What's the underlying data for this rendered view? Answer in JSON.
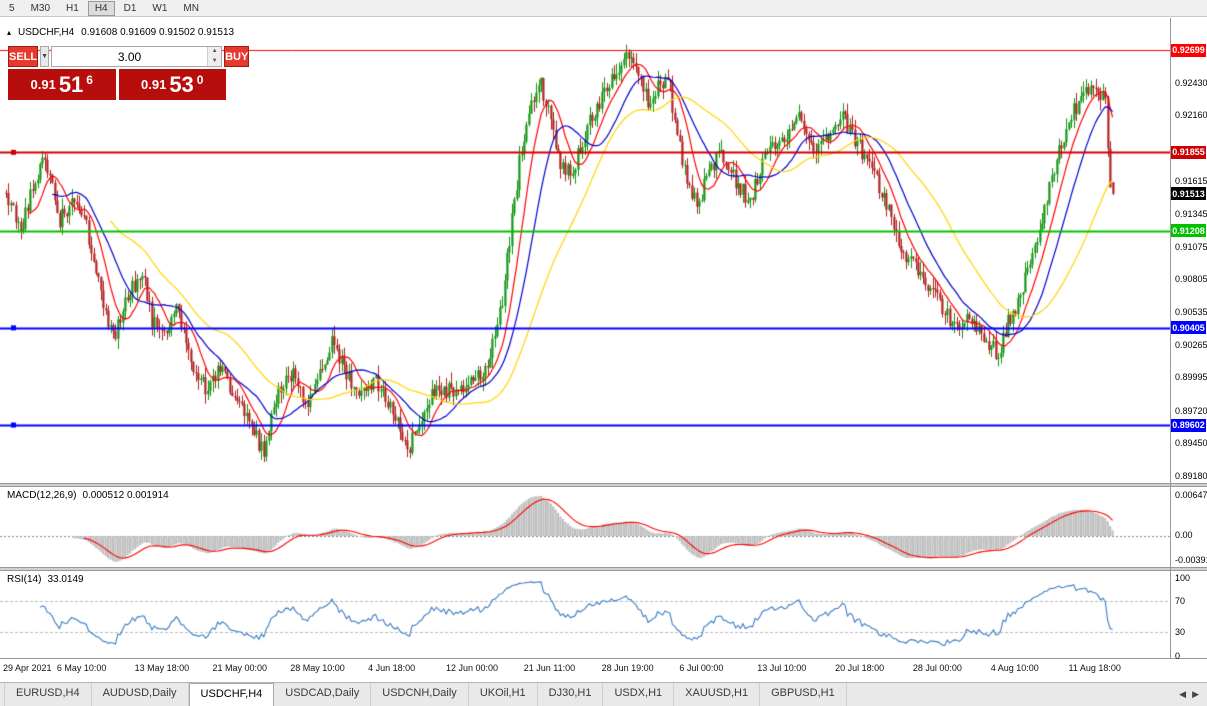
{
  "toolbar": {
    "timeframes": [
      {
        "label": "5",
        "active": false
      },
      {
        "label": "M30",
        "active": false
      },
      {
        "label": "H1",
        "active": false
      },
      {
        "label": "H4",
        "active": true
      },
      {
        "label": "D1",
        "active": false
      },
      {
        "label": "W1",
        "active": false
      },
      {
        "label": "MN",
        "active": false
      }
    ]
  },
  "chart_header": {
    "collapse_icon": "▴",
    "symbol": "USDCHF,H4",
    "ohlc": "0.91608 0.91609 0.91502 0.91513"
  },
  "trade_panel": {
    "sell_label": "SELL",
    "buy_label": "BUY",
    "volume": "3.00",
    "sell_price": {
      "prefix": "0.91",
      "big": "51",
      "sup": "6"
    },
    "buy_price": {
      "prefix": "0.91",
      "big": "53",
      "sup": "0"
    },
    "button_color": "#e8392e",
    "price_box_color": "#b80d0d"
  },
  "chart_data": {
    "type": "candlestick",
    "symbol": "USDCHF",
    "period": "H4",
    "title": "USDCHF,H4",
    "ohlc_current": {
      "open": 0.91608,
      "high": 0.91609,
      "low": 0.91502,
      "close": 0.91513
    },
    "axis": {
      "price_top": 0.92965,
      "price_bottom": 0.89115,
      "labels": [
        "0.92430",
        "0.92160",
        "0.91615",
        "0.91345",
        "0.91075",
        "0.90805",
        "0.90535",
        "0.90265",
        "0.89995",
        "0.89720",
        "0.89450",
        "0.89180"
      ]
    },
    "time_labels": [
      "29 Apr 2021",
      "6 May 10:00",
      "13 May 18:00",
      "21 May 00:00",
      "28 May 10:00",
      "4 Jun 18:00",
      "12 Jun 00:00",
      "21 Jun 11:00",
      "28 Jun 19:00",
      "6 Jul 00:00",
      "13 Jul 10:00",
      "20 Jul 18:00",
      "28 Jul 00:00",
      "4 Aug 10:00",
      "11 Aug 18:00"
    ],
    "candle_count": 456,
    "price_path": [
      [
        0,
        0.9152
      ],
      [
        6,
        0.9118
      ],
      [
        12,
        0.9165
      ],
      [
        16,
        0.9182
      ],
      [
        22,
        0.913
      ],
      [
        28,
        0.9148
      ],
      [
        32,
        0.9135
      ],
      [
        38,
        0.9078
      ],
      [
        44,
        0.9032
      ],
      [
        50,
        0.9065
      ],
      [
        56,
        0.9088
      ],
      [
        60,
        0.9046
      ],
      [
        64,
        0.9032
      ],
      [
        70,
        0.9056
      ],
      [
        76,
        0.901
      ],
      [
        82,
        0.8992
      ],
      [
        88,
        0.9006
      ],
      [
        96,
        0.8976
      ],
      [
        102,
        0.8952
      ],
      [
        106,
        0.894
      ],
      [
        112,
        0.8986
      ],
      [
        118,
        0.9002
      ],
      [
        124,
        0.8976
      ],
      [
        128,
        0.9
      ],
      [
        134,
        0.903
      ],
      [
        140,
        0.9002
      ],
      [
        146,
        0.8986
      ],
      [
        152,
        0.8996
      ],
      [
        160,
        0.8966
      ],
      [
        166,
        0.8942
      ],
      [
        172,
        0.8976
      ],
      [
        178,
        0.8992
      ],
      [
        184,
        0.8986
      ],
      [
        192,
        0.8996
      ],
      [
        198,
        0.9012
      ],
      [
        204,
        0.9062
      ],
      [
        208,
        0.913
      ],
      [
        212,
        0.9192
      ],
      [
        216,
        0.9228
      ],
      [
        220,
        0.9244
      ],
      [
        224,
        0.9208
      ],
      [
        228,
        0.9176
      ],
      [
        232,
        0.9166
      ],
      [
        236,
        0.919
      ],
      [
        240,
        0.9212
      ],
      [
        246,
        0.9236
      ],
      [
        252,
        0.9256
      ],
      [
        256,
        0.9268
      ],
      [
        260,
        0.925
      ],
      [
        264,
        0.9226
      ],
      [
        268,
        0.924
      ],
      [
        272,
        0.925
      ],
      [
        276,
        0.92
      ],
      [
        280,
        0.9162
      ],
      [
        284,
        0.914
      ],
      [
        288,
        0.9166
      ],
      [
        294,
        0.9186
      ],
      [
        300,
        0.916
      ],
      [
        306,
        0.9146
      ],
      [
        312,
        0.918
      ],
      [
        320,
        0.92
      ],
      [
        326,
        0.9214
      ],
      [
        332,
        0.9186
      ],
      [
        338,
        0.92
      ],
      [
        344,
        0.9214
      ],
      [
        352,
        0.9186
      ],
      [
        358,
        0.9164
      ],
      [
        364,
        0.913
      ],
      [
        370,
        0.91
      ],
      [
        376,
        0.9086
      ],
      [
        384,
        0.906
      ],
      [
        390,
        0.904
      ],
      [
        396,
        0.9052
      ],
      [
        402,
        0.903
      ],
      [
        408,
        0.902
      ],
      [
        412,
        0.9046
      ],
      [
        416,
        0.9062
      ],
      [
        420,
        0.9086
      ],
      [
        426,
        0.913
      ],
      [
        432,
        0.918
      ],
      [
        438,
        0.9216
      ],
      [
        444,
        0.9236
      ],
      [
        448,
        0.924
      ],
      [
        452,
        0.9228
      ],
      [
        454,
        0.9161
      ],
      [
        455,
        0.9151
      ]
    ],
    "last_candle": {
      "o": 0.91608,
      "h": 0.91609,
      "l": 0.91502,
      "c": 0.91513
    },
    "colors": {
      "up": "#159515",
      "down": "#b22222",
      "background": "#ffffff"
    },
    "moving_averages": [
      {
        "name": "ma-fast",
        "period": 10,
        "color": "#ff0000"
      },
      {
        "name": "ma-mid",
        "period": 20,
        "color": "#0000cd"
      },
      {
        "name": "ma-slow",
        "period": 44,
        "color": "#ffd400"
      }
    ],
    "levels": [
      {
        "price": 0.92699,
        "label": "0.92699",
        "color": "#ff0000",
        "width": 1
      },
      {
        "price": 0.91855,
        "label": "0.91855",
        "color": "#cc0000",
        "width": 2,
        "handle": true
      },
      {
        "price": 0.91513,
        "label": "0.91513",
        "color": "#000000",
        "current": true
      },
      {
        "price": 0.91208,
        "label": "0.91208",
        "color": "#00c000",
        "width": 2
      },
      {
        "price": 0.90405,
        "label": "0.90405",
        "color": "#0000ff",
        "width": 2,
        "handle": true
      },
      {
        "price": 0.89602,
        "label": "0.89602",
        "color": "#0000ff",
        "width": 2,
        "handle": true
      }
    ],
    "indicators": {
      "macd": {
        "label": "MACD(12,26,9)",
        "values_text": "0.000512 0.001914",
        "fast": 12,
        "slow": 26,
        "signal": 9,
        "axis_labels": [
          "0.00647",
          "0.00",
          "-0.00391"
        ],
        "histogram_color": "#c0c0c0",
        "signal_color": "#ff0000"
      },
      "rsi": {
        "label": "RSI(14)",
        "value_text": "33.0149",
        "period": 14,
        "axis_labels": [
          "100",
          "70",
          "30",
          "0"
        ],
        "levels": [
          70,
          30
        ],
        "color": "#3b7cc4"
      }
    }
  },
  "bottom_tabs": {
    "items": [
      {
        "label": "EURUSD,H4",
        "active": false
      },
      {
        "label": "AUDUSD,Daily",
        "active": false
      },
      {
        "label": "USDCHF,H4",
        "active": true
      },
      {
        "label": "USDCAD,Daily",
        "active": false
      },
      {
        "label": "USDCNH,Daily",
        "active": false
      },
      {
        "label": "UKOil,H1",
        "active": false
      },
      {
        "label": "DJ30,H1",
        "active": false
      },
      {
        "label": "USDX,H1",
        "active": false
      },
      {
        "label": "XAUUSD,H1",
        "active": false
      },
      {
        "label": "GBPUSD,H1",
        "active": false
      }
    ],
    "scroll_left": "◀",
    "scroll_right": "▶"
  }
}
